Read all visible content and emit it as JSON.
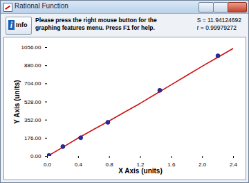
{
  "chart_data": {
    "type": "scatter",
    "title": "Rational Function",
    "annotations": {
      "button": "Info",
      "help": [
        "Please press the right mouse button for the",
        "graphing features menu.  Press F1 for help."
      ],
      "stats": [
        "S = 11.94124692",
        "r = 0.99979272"
      ]
    },
    "x_label": "X Axis (units)",
    "y_label": "Y Axis (units)",
    "xlim": [
      0,
      2.4
    ],
    "xticks": [
      {
        "value": 0,
        "label": "0.0"
      },
      0.4,
      0.8,
      1.2,
      1.6,
      {
        "value": 2,
        "label": "2.0"
      },
      2.4
    ],
    "ylim": [
      0,
      1056
    ],
    "yticks": [
      {
        "value": 0,
        "label": "0.00"
      },
      {
        "value": 176,
        "label": "176.00"
      },
      {
        "value": 352,
        "label": "352.00"
      },
      {
        "value": 528,
        "label": "528.00"
      },
      {
        "value": 704,
        "label": "704.00"
      },
      {
        "value": 880,
        "label": "880.00"
      },
      {
        "value": 1056,
        "label": "1056.00"
      }
    ],
    "grid": false,
    "series": [
      {
        "type": "line",
        "color": "#cc1111",
        "line_style": "solid",
        "x": [
          0,
          0.2,
          0.4,
          0.6,
          0.8,
          1.0,
          1.2,
          1.4,
          1.6,
          1.8,
          2.0,
          2.2,
          2.4
        ],
        "values": [
          0,
          88,
          178,
          262,
          345,
          430,
          515,
          605,
          695,
          785,
          875,
          962,
          1048
        ]
      },
      {
        "type": "scatter",
        "color": "#2a2aa6",
        "marker": "circle",
        "x": [
          0.02,
          0.2,
          0.43,
          0.78,
          1.45,
          2.2
        ],
        "values": [
          8,
          95,
          180,
          330,
          640,
          975
        ]
      }
    ]
  }
}
